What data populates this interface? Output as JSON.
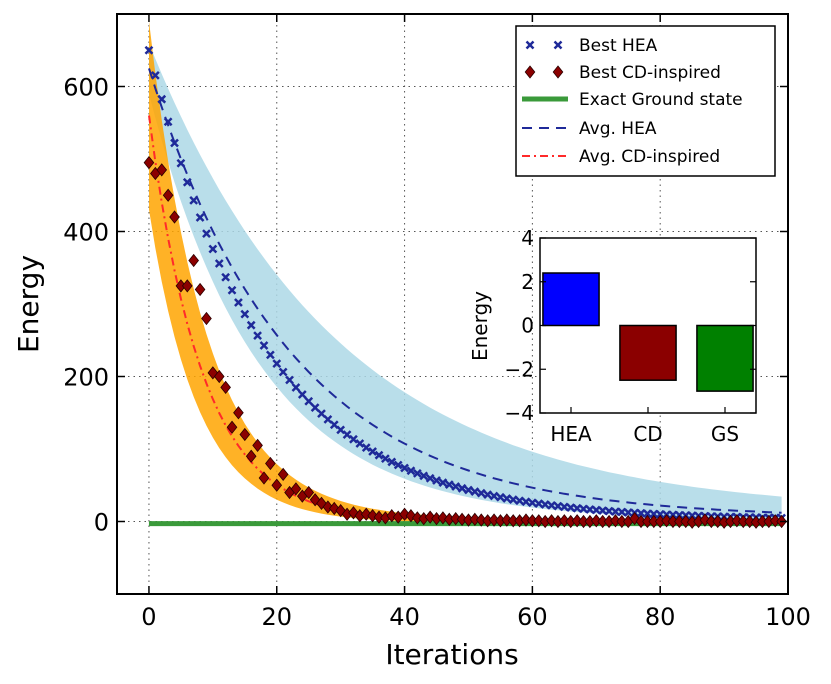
{
  "chart_data": [
    {
      "type": "line",
      "name": "main",
      "xlabel": "Iterations",
      "ylabel": "Energy",
      "xlim": [
        -5,
        100
      ],
      "ylim": [
        -100,
        700
      ],
      "xticks": [
        0,
        20,
        40,
        60,
        80,
        100
      ],
      "yticks": [
        0,
        200,
        400,
        600
      ],
      "grid": true,
      "legend_position": "top-right",
      "series": [
        {
          "name": "Best HEA",
          "kind": "markers",
          "marker": "x",
          "color": "#1f2a99",
          "model": {
            "start": 650,
            "decay": 0.055,
            "floor": 2,
            "iterations": 100
          }
        },
        {
          "name": "Best CD-inspired",
          "kind": "markers",
          "marker": "diamond",
          "color": "#8b0000",
          "points": [
            [
              0,
              495
            ],
            [
              1,
              480
            ],
            [
              2,
              485
            ],
            [
              3,
              450
            ],
            [
              4,
              420
            ],
            [
              5,
              325
            ],
            [
              6,
              325
            ],
            [
              7,
              360
            ],
            [
              8,
              320
            ],
            [
              9,
              280
            ],
            [
              10,
              205
            ],
            [
              11,
              200
            ],
            [
              12,
              185
            ],
            [
              13,
              130
            ],
            [
              14,
              150
            ],
            [
              15,
              120
            ],
            [
              16,
              90
            ],
            [
              17,
              105
            ],
            [
              18,
              60
            ],
            [
              19,
              80
            ],
            [
              20,
              50
            ],
            [
              21,
              65
            ],
            [
              22,
              40
            ],
            [
              23,
              45
            ],
            [
              24,
              35
            ],
            [
              25,
              40
            ],
            [
              26,
              30
            ],
            [
              27,
              25
            ],
            [
              28,
              20
            ],
            [
              29,
              18
            ],
            [
              30,
              15
            ],
            [
              31,
              10
            ],
            [
              32,
              12
            ],
            [
              33,
              8
            ],
            [
              34,
              10
            ],
            [
              35,
              8
            ],
            [
              36,
              6
            ],
            [
              37,
              5
            ],
            [
              38,
              8
            ],
            [
              39,
              6
            ],
            [
              40,
              10
            ],
            [
              41,
              8
            ],
            [
              42,
              5
            ],
            [
              43,
              4
            ],
            [
              44,
              6
            ],
            [
              45,
              4
            ],
            [
              46,
              5
            ],
            [
              47,
              3
            ],
            [
              48,
              4
            ],
            [
              49,
              3
            ],
            [
              50,
              2
            ],
            [
              51,
              3
            ],
            [
              52,
              2
            ],
            [
              53,
              1
            ],
            [
              54,
              2
            ],
            [
              55,
              1
            ],
            [
              56,
              2
            ],
            [
              57,
              1
            ],
            [
              58,
              1
            ],
            [
              59,
              2
            ],
            [
              60,
              1
            ],
            [
              61,
              1
            ],
            [
              62,
              0
            ],
            [
              63,
              1
            ],
            [
              64,
              0
            ],
            [
              65,
              1
            ],
            [
              66,
              0
            ],
            [
              67,
              1
            ],
            [
              68,
              0
            ],
            [
              69,
              0
            ],
            [
              70,
              1
            ],
            [
              71,
              0
            ],
            [
              72,
              0
            ],
            [
              73,
              1
            ],
            [
              74,
              0
            ],
            [
              75,
              0
            ],
            [
              76,
              4
            ],
            [
              77,
              0
            ],
            [
              78,
              0
            ],
            [
              79,
              0
            ],
            [
              80,
              0
            ],
            [
              81,
              1
            ],
            [
              82,
              0
            ],
            [
              83,
              0
            ],
            [
              84,
              0
            ],
            [
              85,
              -1
            ],
            [
              86,
              0
            ],
            [
              87,
              2
            ],
            [
              88,
              0
            ],
            [
              89,
              0
            ],
            [
              90,
              -1
            ],
            [
              91,
              0
            ],
            [
              92,
              1
            ],
            [
              93,
              0
            ],
            [
              94,
              0
            ],
            [
              95,
              -1
            ],
            [
              96,
              0
            ],
            [
              97,
              0
            ],
            [
              98,
              1
            ],
            [
              99,
              0
            ]
          ]
        },
        {
          "name": "Exact Ground state",
          "kind": "line",
          "color": "#3a9a3a",
          "value": -3
        },
        {
          "name": "Avg. HEA",
          "kind": "dashed",
          "color": "#1f2a99",
          "model": {
            "start": 625,
            "decay": 0.045,
            "floor": 5
          },
          "band": {
            "low": {
              "start": 590,
              "decay": 0.058,
              "floor": 1
            },
            "high": {
              "start": 660,
              "decay": 0.034,
              "floor": 12
            },
            "color": "#add8e6"
          }
        },
        {
          "name": "Avg. CD-inspired",
          "kind": "dashdot",
          "color": "#ff2a2a",
          "model": {
            "start": 560,
            "decay": 0.12,
            "floor": 0
          },
          "band": {
            "low": {
              "start": 430,
              "decay": 0.13,
              "floor": -2
            },
            "high": {
              "start": 690,
              "decay": 0.11,
              "floor": 3
            },
            "color": "#ffa500"
          }
        }
      ]
    },
    {
      "type": "bar",
      "name": "inset",
      "ylabel": "Energy",
      "categories": [
        "HEA",
        "CD",
        "GS"
      ],
      "values": [
        2.4,
        -2.5,
        -3.0
      ],
      "colors": [
        "#0000ff",
        "#8b0000",
        "#008000"
      ],
      "ylim": [
        -4,
        4
      ],
      "yticks": [
        -4,
        -2,
        0,
        2,
        4
      ]
    }
  ]
}
